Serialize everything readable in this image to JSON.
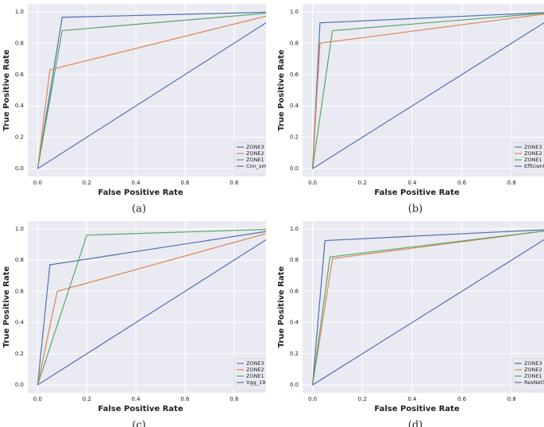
{
  "chart_data": [
    {
      "type": "line",
      "caption": "(a)",
      "xlabel": "False Positive Rate",
      "ylabel": "True Positive Rate",
      "xlim": [
        -0.04,
        0.93
      ],
      "ylim": [
        -0.05,
        1.05
      ],
      "grid": true,
      "legend": "lower right",
      "xticks": [
        {
          "value": 0,
          "label": "0.0"
        },
        {
          "value": 0.2,
          "label": "0.2"
        },
        {
          "value": 0.4,
          "label": "0.4"
        },
        {
          "value": 0.6,
          "label": "0.6"
        },
        {
          "value": 0.8,
          "label": "0.8"
        }
      ],
      "yticks": [
        {
          "value": 0,
          "label": "0.0"
        },
        {
          "value": 0.2,
          "label": "0.2"
        },
        {
          "value": 0.4,
          "label": "0.4"
        },
        {
          "value": 0.6,
          "label": "0.6"
        },
        {
          "value": 0.8,
          "label": "0.8"
        },
        {
          "value": 1,
          "label": "1.0"
        }
      ],
      "series": [
        {
          "name": "ZONE3",
          "color": "#4c72b0",
          "x": [
            0,
            0.1,
            1
          ],
          "values": [
            0,
            0.965,
            1
          ]
        },
        {
          "name": "ZONE2",
          "color": "#dd8452",
          "x": [
            0,
            0.05,
            1
          ],
          "values": [
            0,
            0.63,
            1
          ]
        },
        {
          "name": "ZONE1",
          "color": "#55a868",
          "x": [
            0,
            0.1,
            1
          ],
          "values": [
            0,
            0.88,
            1
          ]
        },
        {
          "name": "Cnn_sm",
          "color": "#5a6fb8",
          "x": [
            0,
            1
          ],
          "values": [
            0,
            1
          ]
        }
      ]
    },
    {
      "type": "line",
      "caption": "(b)",
      "xlabel": "False Positive Rate",
      "ylabel": "True Positive Rate",
      "xlim": [
        -0.04,
        0.93
      ],
      "ylim": [
        -0.05,
        1.05
      ],
      "grid": true,
      "legend": "lower right",
      "xticks": [
        {
          "value": 0,
          "label": "0.0"
        },
        {
          "value": 0.2,
          "label": "0.2"
        },
        {
          "value": 0.4,
          "label": "0.4"
        },
        {
          "value": 0.6,
          "label": "0.6"
        },
        {
          "value": 0.8,
          "label": "0.8"
        }
      ],
      "yticks": [
        {
          "value": 0,
          "label": "0.0"
        },
        {
          "value": 0.2,
          "label": "0.2"
        },
        {
          "value": 0.4,
          "label": "0.4"
        },
        {
          "value": 0.6,
          "label": "0.6"
        },
        {
          "value": 0.8,
          "label": "0.8"
        },
        {
          "value": 1,
          "label": "1.0"
        }
      ],
      "series": [
        {
          "name": "ZONE3",
          "color": "#4c72b0",
          "x": [
            0,
            0.03,
            1
          ],
          "values": [
            0,
            0.93,
            1
          ]
        },
        {
          "name": "ZONE2",
          "color": "#dd8452",
          "x": [
            0,
            0.03,
            1
          ],
          "values": [
            0,
            0.8,
            1
          ]
        },
        {
          "name": "ZONE1",
          "color": "#55a868",
          "x": [
            0,
            0.08,
            1
          ],
          "values": [
            0,
            0.88,
            1
          ]
        },
        {
          "name": "Efficient",
          "color": "#5a6fb8",
          "x": [
            0,
            1
          ],
          "values": [
            0,
            1
          ]
        }
      ]
    },
    {
      "type": "line",
      "caption": "(c)",
      "xlabel": "False Positive Rate",
      "ylabel": "True Positive Rate",
      "xlim": [
        -0.04,
        0.93
      ],
      "ylim": [
        -0.05,
        1.05
      ],
      "grid": true,
      "legend": "lower right",
      "xticks": [
        {
          "value": 0,
          "label": "0.0"
        },
        {
          "value": 0.2,
          "label": "0.2"
        },
        {
          "value": 0.4,
          "label": "0.4"
        },
        {
          "value": 0.6,
          "label": "0.6"
        },
        {
          "value": 0.8,
          "label": "0.8"
        }
      ],
      "yticks": [
        {
          "value": 0,
          "label": "0.0"
        },
        {
          "value": 0.2,
          "label": "0.2"
        },
        {
          "value": 0.4,
          "label": "0.4"
        },
        {
          "value": 0.6,
          "label": "0.6"
        },
        {
          "value": 0.8,
          "label": "0.8"
        },
        {
          "value": 1,
          "label": "1.0"
        }
      ],
      "series": [
        {
          "name": "ZONE3",
          "color": "#4c72b0",
          "x": [
            0,
            0.05,
            1
          ],
          "values": [
            0,
            0.77,
            1
          ]
        },
        {
          "name": "ZONE2",
          "color": "#dd8452",
          "x": [
            0,
            0.08,
            1
          ],
          "values": [
            0,
            0.6,
            1
          ]
        },
        {
          "name": "ZONE1",
          "color": "#55a868",
          "x": [
            0,
            0.2,
            1
          ],
          "values": [
            0,
            0.96,
            1
          ]
        },
        {
          "name": "Vgg_19",
          "color": "#5a6fb8",
          "x": [
            0,
            1
          ],
          "values": [
            0,
            1
          ]
        }
      ]
    },
    {
      "type": "line",
      "caption": "(d)",
      "xlabel": "False Positive Rate",
      "ylabel": "True Positive Rate",
      "xlim": [
        -0.04,
        0.93
      ],
      "ylim": [
        -0.05,
        1.05
      ],
      "grid": true,
      "legend": "lower right",
      "xticks": [
        {
          "value": 0,
          "label": "0.0"
        },
        {
          "value": 0.2,
          "label": "0.2"
        },
        {
          "value": 0.4,
          "label": "0.4"
        },
        {
          "value": 0.6,
          "label": "0.6"
        },
        {
          "value": 0.8,
          "label": "0.8"
        }
      ],
      "yticks": [
        {
          "value": 0,
          "label": "0.0"
        },
        {
          "value": 0.2,
          "label": "0.2"
        },
        {
          "value": 0.4,
          "label": "0.4"
        },
        {
          "value": 0.6,
          "label": "0.6"
        },
        {
          "value": 0.8,
          "label": "0.8"
        },
        {
          "value": 1,
          "label": "1.0"
        }
      ],
      "series": [
        {
          "name": "ZONE3",
          "color": "#4c72b0",
          "x": [
            0,
            0.05,
            1
          ],
          "values": [
            0,
            0.925,
            1
          ]
        },
        {
          "name": "ZONE2",
          "color": "#dd8452",
          "x": [
            0,
            0.08,
            1
          ],
          "values": [
            0,
            0.81,
            1
          ]
        },
        {
          "name": "ZONE1",
          "color": "#55a868",
          "x": [
            0,
            0.07,
            1
          ],
          "values": [
            0,
            0.82,
            1
          ]
        },
        {
          "name": "ResNet5",
          "color": "#5a6fb8",
          "x": [
            0,
            1
          ],
          "values": [
            0,
            1
          ]
        }
      ]
    }
  ]
}
